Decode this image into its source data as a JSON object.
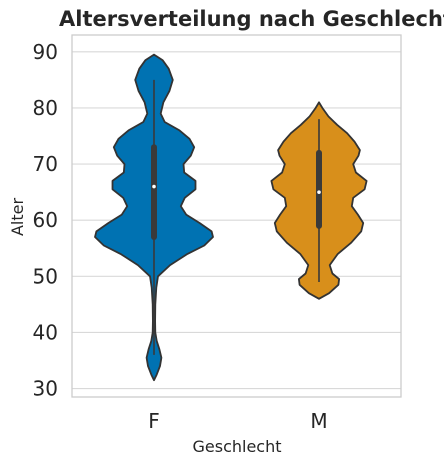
{
  "chart_data": {
    "type": "violin",
    "title": "Altersverteilung nach Geschlecht",
    "xlabel": "Geschlecht",
    "ylabel": "Alter",
    "ylim": [
      28.5,
      93
    ],
    "yticks": [
      30,
      40,
      50,
      60,
      70,
      80,
      90
    ],
    "grid": "horizontal",
    "categories": [
      "F",
      "M"
    ],
    "series": [
      {
        "category": "F",
        "color": "#0072b2",
        "min": 36,
        "q1": 57,
        "median": 66,
        "q3": 73,
        "max": 85,
        "density": [
          [
            31.5,
            0
          ],
          [
            32.5,
            0.04
          ],
          [
            34,
            0.09
          ],
          [
            35.5,
            0.11
          ],
          [
            37,
            0.08
          ],
          [
            38.5,
            0.04
          ],
          [
            40,
            0.02
          ],
          [
            42,
            0.016
          ],
          [
            45,
            0.02
          ],
          [
            48,
            0.035
          ],
          [
            50,
            0.06
          ],
          [
            52,
            0.24
          ],
          [
            54,
            0.5
          ],
          [
            55.5,
            0.75
          ],
          [
            57,
            0.88
          ],
          [
            58,
            0.86
          ],
          [
            59.5,
            0.68
          ],
          [
            61,
            0.48
          ],
          [
            62.5,
            0.4
          ],
          [
            64,
            0.46
          ],
          [
            65.5,
            0.62
          ],
          [
            67,
            0.62
          ],
          [
            68.5,
            0.45
          ],
          [
            70,
            0.44
          ],
          [
            71.5,
            0.55
          ],
          [
            73,
            0.6
          ],
          [
            74.5,
            0.53
          ],
          [
            76,
            0.38
          ],
          [
            77.5,
            0.16
          ],
          [
            79,
            0.1
          ],
          [
            81,
            0.14
          ],
          [
            83,
            0.23
          ],
          [
            85,
            0.28
          ],
          [
            87,
            0.22
          ],
          [
            88.5,
            0.13
          ],
          [
            89.5,
            0
          ]
        ]
      },
      {
        "category": "M",
        "color": "#d88f1b",
        "min": 49,
        "q1": 59,
        "median": 65,
        "q3": 72,
        "max": 78,
        "density": [
          [
            46,
            0
          ],
          [
            47,
            0.15
          ],
          [
            48.5,
            0.29
          ],
          [
            49.5,
            0.3
          ],
          [
            50.5,
            0.2
          ],
          [
            52,
            0.16
          ],
          [
            54,
            0.28
          ],
          [
            56,
            0.48
          ],
          [
            58,
            0.63
          ],
          [
            59.5,
            0.66
          ],
          [
            61,
            0.58
          ],
          [
            62.5,
            0.49
          ],
          [
            64,
            0.51
          ],
          [
            65.5,
            0.68
          ],
          [
            67,
            0.71
          ],
          [
            68.5,
            0.55
          ],
          [
            70,
            0.51
          ],
          [
            71.5,
            0.59
          ],
          [
            72.5,
            0.61
          ],
          [
            74,
            0.53
          ],
          [
            75.5,
            0.42
          ],
          [
            77,
            0.27
          ],
          [
            78.5,
            0.14
          ],
          [
            80,
            0.05
          ],
          [
            81,
            0
          ]
        ]
      }
    ]
  }
}
